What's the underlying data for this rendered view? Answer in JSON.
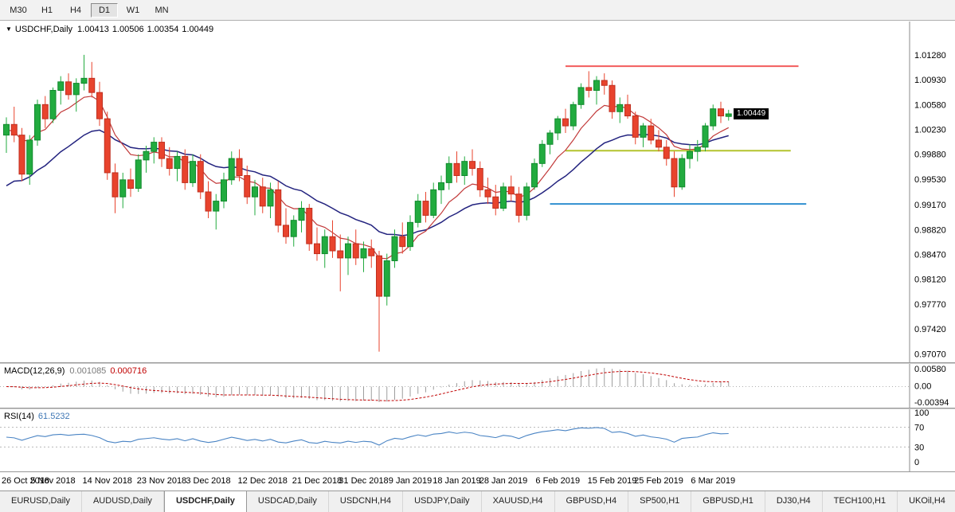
{
  "toolbar": {
    "timeframes": [
      {
        "label": "M30",
        "active": false
      },
      {
        "label": "H1",
        "active": false
      },
      {
        "label": "H4",
        "active": false
      },
      {
        "label": "D1",
        "active": true
      },
      {
        "label": "W1",
        "active": false
      },
      {
        "label": "MN",
        "active": false
      }
    ]
  },
  "icons": {
    "symbol_dropdown": "▼"
  },
  "chart": {
    "title_symbol": "USDCHF,Daily",
    "ohlc": {
      "open": "1.00413",
      "high": "1.00506",
      "low": "1.00354",
      "close": "1.00449"
    },
    "price_badge": "1.00449"
  },
  "chart_data": {
    "type": "candlestick",
    "symbol": "USDCHF",
    "timeframe": "Daily",
    "ylim": [
      0.9695,
      1.0175
    ],
    "y_ticks": [
      "1.01280",
      "1.00930",
      "1.00580",
      "1.00230",
      "0.99880",
      "0.99530",
      "0.99170",
      "0.98820",
      "0.98470",
      "0.98120",
      "0.97770",
      "0.97420",
      "0.97070"
    ],
    "x_labels": [
      {
        "label": "26 Oct 2018",
        "index": 0
      },
      {
        "label": "5 Nov 2018",
        "index": 6
      },
      {
        "label": "14 Nov 2018",
        "index": 13
      },
      {
        "label": "23 Nov 2018",
        "index": 20
      },
      {
        "label": "3 Dec 2018",
        "index": 26
      },
      {
        "label": "12 Dec 2018",
        "index": 33
      },
      {
        "label": "21 Dec 2018",
        "index": 40
      },
      {
        "label": "31 Dec 2018",
        "index": 46
      },
      {
        "label": "9 Jan 2019",
        "index": 52
      },
      {
        "label": "18 Jan 2019",
        "index": 58
      },
      {
        "label": "28 Jan 2019",
        "index": 64
      },
      {
        "label": "6 Feb 2019",
        "index": 71
      },
      {
        "label": "15 Feb 2019",
        "index": 78
      },
      {
        "label": "25 Feb 2019",
        "index": 84
      },
      {
        "label": "6 Mar 2019",
        "index": 91
      }
    ],
    "candles": [
      [
        1.0015,
        1.004,
        0.999,
        1.003
      ],
      [
        1.003,
        1.0055,
        1.0005,
        1.0015
      ],
      [
        1.0015,
        1.0025,
        0.995,
        0.996
      ],
      [
        0.996,
        1.0015,
        0.9945,
        1.0008
      ],
      [
        1.0008,
        1.0065,
        1.0,
        1.0058
      ],
      [
        1.0058,
        1.007,
        1.0025,
        1.0038
      ],
      [
        1.0038,
        1.0082,
        1.0032,
        1.0078
      ],
      [
        1.0078,
        1.0098,
        1.0058,
        1.009
      ],
      [
        1.009,
        1.0102,
        1.0065,
        1.0072
      ],
      [
        1.0072,
        1.0095,
        1.0048,
        1.0088
      ],
      [
        1.0088,
        1.0128,
        1.0078,
        1.0095
      ],
      [
        1.0095,
        1.0118,
        1.0068,
        1.0075
      ],
      [
        1.0075,
        1.009,
        1.0028,
        1.0038
      ],
      [
        1.0038,
        1.0048,
        0.9952,
        0.9962
      ],
      [
        0.9962,
        0.9975,
        0.9905,
        0.9928
      ],
      [
        0.9928,
        0.9962,
        0.9912,
        0.9952
      ],
      [
        0.9952,
        0.9968,
        0.9928,
        0.994
      ],
      [
        0.994,
        0.9988,
        0.9935,
        0.998
      ],
      [
        0.998,
        1.0,
        0.9962,
        0.9992
      ],
      [
        0.9992,
        1.0012,
        0.9975,
        1.0005
      ],
      [
        1.0005,
        1.0012,
        0.997,
        0.9982
      ],
      [
        0.9982,
        0.9998,
        0.9958,
        0.9968
      ],
      [
        0.9968,
        0.9992,
        0.995,
        0.9985
      ],
      [
        0.9985,
        0.9995,
        0.9938,
        0.9948
      ],
      [
        0.9948,
        0.9988,
        0.9942,
        0.9978
      ],
      [
        0.9978,
        0.9988,
        0.9925,
        0.9935
      ],
      [
        0.9935,
        0.995,
        0.9898,
        0.9908
      ],
      [
        0.9908,
        0.9932,
        0.9882,
        0.9922
      ],
      [
        0.9922,
        0.9962,
        0.9912,
        0.9952
      ],
      [
        0.9952,
        0.9992,
        0.9945,
        0.9982
      ],
      [
        0.9982,
        0.9995,
        0.995,
        0.9958
      ],
      [
        0.9958,
        0.9972,
        0.9918,
        0.9928
      ],
      [
        0.9928,
        0.9952,
        0.9902,
        0.9942
      ],
      [
        0.9942,
        0.9955,
        0.9905,
        0.9915
      ],
      [
        0.9915,
        0.9948,
        0.9898,
        0.9938
      ],
      [
        0.9938,
        0.995,
        0.9878,
        0.9888
      ],
      [
        0.9888,
        0.9912,
        0.9862,
        0.9872
      ],
      [
        0.9872,
        0.9902,
        0.9858,
        0.9895
      ],
      [
        0.9895,
        0.9922,
        0.9878,
        0.9912
      ],
      [
        0.9912,
        0.9918,
        0.9852,
        0.9862
      ],
      [
        0.9862,
        0.9885,
        0.9838,
        0.9848
      ],
      [
        0.9848,
        0.9882,
        0.9828,
        0.9872
      ],
      [
        0.9872,
        0.9895,
        0.9842,
        0.9852
      ],
      [
        0.9852,
        0.9875,
        0.9795,
        0.9842
      ],
      [
        0.9842,
        0.9872,
        0.9818,
        0.9862
      ],
      [
        0.9862,
        0.9882,
        0.9832,
        0.9842
      ],
      [
        0.9842,
        0.9865,
        0.9822,
        0.9855
      ],
      [
        0.9855,
        0.9868,
        0.9828,
        0.9845
      ],
      [
        0.9845,
        0.9852,
        0.971,
        0.9788
      ],
      [
        0.9788,
        0.9848,
        0.9775,
        0.9838
      ],
      [
        0.9838,
        0.9882,
        0.9828,
        0.9872
      ],
      [
        0.9872,
        0.9892,
        0.9848,
        0.9858
      ],
      [
        0.9858,
        0.9902,
        0.9852,
        0.9892
      ],
      [
        0.9892,
        0.9932,
        0.9885,
        0.9922
      ],
      [
        0.9922,
        0.9935,
        0.9892,
        0.9902
      ],
      [
        0.9902,
        0.9948,
        0.9898,
        0.9938
      ],
      [
        0.9938,
        0.9958,
        0.9918,
        0.9948
      ],
      [
        0.9948,
        0.9985,
        0.9938,
        0.9975
      ],
      [
        0.9975,
        0.9992,
        0.9948,
        0.9958
      ],
      [
        0.9958,
        0.9985,
        0.9945,
        0.9978
      ],
      [
        0.9978,
        0.9995,
        0.9958,
        0.9968
      ],
      [
        0.9968,
        0.9978,
        0.9928,
        0.9938
      ],
      [
        0.9938,
        0.9955,
        0.9918,
        0.9928
      ],
      [
        0.9928,
        0.9945,
        0.9902,
        0.9912
      ],
      [
        0.9912,
        0.9948,
        0.9908,
        0.9942
      ],
      [
        0.9942,
        0.9958,
        0.9922,
        0.9932
      ],
      [
        0.9932,
        0.9942,
        0.9892,
        0.9902
      ],
      [
        0.9902,
        0.9948,
        0.9895,
        0.9942
      ],
      [
        0.9942,
        0.9982,
        0.9938,
        0.9975
      ],
      [
        0.9975,
        1.0008,
        0.997,
        1.0002
      ],
      [
        1.0002,
        1.0022,
        0.9988,
        1.0018
      ],
      [
        1.0018,
        1.0042,
        1.0008,
        1.0038
      ],
      [
        1.0038,
        1.0052,
        1.0018,
        1.0028
      ],
      [
        1.0028,
        1.0062,
        1.0022,
        1.0058
      ],
      [
        1.0058,
        1.0088,
        1.0052,
        1.0082
      ],
      [
        1.0082,
        1.0105,
        1.0068,
        1.0078
      ],
      [
        1.0078,
        1.0098,
        1.0058,
        1.0092
      ],
      [
        1.0092,
        1.0102,
        1.0072,
        1.0085
      ],
      [
        1.0085,
        1.0092,
        1.0038,
        1.0048
      ],
      [
        1.0048,
        1.0068,
        1.0032,
        1.0058
      ],
      [
        1.0058,
        1.0072,
        1.0038,
        1.0042
      ],
      [
        1.0042,
        1.0048,
        1.0002,
        1.0012
      ],
      [
        1.0012,
        1.0032,
        0.9998,
        1.0028
      ],
      [
        1.0028,
        1.0038,
        1.0002,
        1.0008
      ],
      [
        1.0008,
        1.0022,
        0.9992,
        0.9998
      ],
      [
        0.9998,
        1.0008,
        0.9972,
        0.9982
      ],
      [
        0.9982,
        0.9992,
        0.9928,
        0.9942
      ],
      [
        0.9942,
        0.9988,
        0.9938,
        0.9982
      ],
      [
        0.9982,
        1.0002,
        0.9968,
        0.9992
      ],
      [
        0.9992,
        1.0008,
        0.9978,
        0.9998
      ],
      [
        0.9998,
        1.0032,
        0.9992,
        1.0028
      ],
      [
        1.0028,
        1.0058,
        1.0022,
        1.0052
      ],
      [
        1.0052,
        1.0062,
        1.0032,
        1.0042
      ],
      [
        1.00413,
        1.00506,
        1.00354,
        1.00449
      ]
    ],
    "colors": {
      "up": "#22ab3f",
      "up_border": "#118a2d",
      "down": "#e8432d",
      "down_border": "#bf2f1f"
    },
    "overlays": {
      "ma_fast": {
        "period": 8,
        "seed": 1.002,
        "color": "#c23a3a"
      },
      "ma_slow": {
        "period": 21,
        "seed": 0.9935,
        "color": "#23237f"
      },
      "hlines": [
        {
          "name": "resistance-line",
          "price": 1.0112,
          "from_index": 72,
          "to_index": 102,
          "color": "#f25c5c",
          "width": 2
        },
        {
          "name": "pivot-line",
          "price": 0.9993,
          "from_index": 72,
          "to_index": 101,
          "color": "#b3c32e",
          "width": 2
        },
        {
          "name": "support-line",
          "price": 0.9918,
          "from_index": 70,
          "to_index": 103,
          "color": "#2f8fd0",
          "width": 2
        }
      ]
    },
    "macd": {
      "label": "MACD(12,26,9)",
      "value_main": "0.001085",
      "value_signal": "0.000716",
      "fast": 12,
      "slow": 26,
      "signal_period": 9,
      "scale_labels": [
        "0.00580",
        "0.00",
        "-0.00394"
      ],
      "histogram_color": "#9e9e9e",
      "signal_color": "#c00000"
    },
    "rsi": {
      "label": "RSI(14)",
      "value": "61.5232",
      "period": 14,
      "levels": [
        70,
        30
      ],
      "scale_labels": [
        "100",
        "70",
        "30",
        "0"
      ],
      "line_color": "#4a84c4"
    }
  },
  "tabs": [
    {
      "label": "EURUSD,Daily",
      "active": false
    },
    {
      "label": "AUDUSD,Daily",
      "active": false
    },
    {
      "label": "USDCHF,Daily",
      "active": true
    },
    {
      "label": "USDCAD,Daily",
      "active": false
    },
    {
      "label": "USDCNH,H4",
      "active": false
    },
    {
      "label": "USDJPY,Daily",
      "active": false
    },
    {
      "label": "XAUUSD,H4",
      "active": false
    },
    {
      "label": "GBPUSD,H4",
      "active": false
    },
    {
      "label": "SP500,H1",
      "active": false
    },
    {
      "label": "GBPUSD,H1",
      "active": false
    },
    {
      "label": "DJ30,H4",
      "active": false
    },
    {
      "label": "TECH100,H1",
      "active": false
    },
    {
      "label": "UKOil,H4",
      "active": false
    }
  ]
}
